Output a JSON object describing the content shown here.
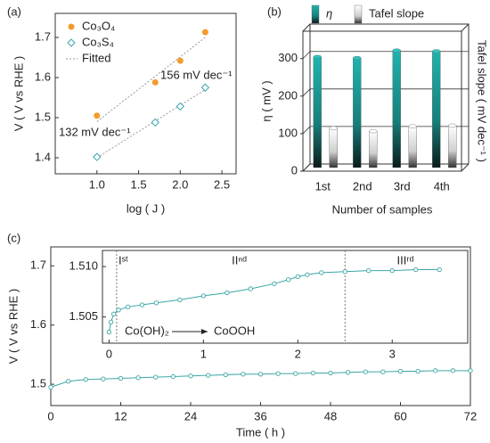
{
  "chart_data": [
    {
      "type": "scatter",
      "panel_label": "(a)",
      "xlabel": "log ( J )",
      "ylabel": "V ( V vs RHE )",
      "xlim": [
        0.5,
        2.67
      ],
      "ylim": [
        1.36,
        1.76
      ],
      "xticks": [
        {
          "value": 1,
          "label": "1.0"
        },
        1.5,
        {
          "value": 2,
          "label": "2.0"
        },
        2.5
      ],
      "yticks": [
        1.4,
        1.5,
        1.6,
        1.7
      ],
      "series": [
        {
          "name": "Co₃O₄",
          "color": "#f39c2c",
          "marker": "circle",
          "x": [
            1.0,
            1.7,
            2.0,
            2.3
          ],
          "values": [
            1.505,
            1.588,
            1.642,
            1.713
          ]
        },
        {
          "name": "Co₃S₄",
          "color": "#3ba7b5",
          "marker": "diamond",
          "x": [
            1.0,
            1.7,
            2.0,
            2.3
          ],
          "values": [
            1.402,
            1.488,
            1.528,
            1.575
          ]
        }
      ],
      "fitted": {
        "name": "Fitted",
        "color": "#999999",
        "lines": [
          {
            "x": [
              1.0,
              2.3
            ],
            "values": [
              1.49,
              1.7
            ]
          },
          {
            "x": [
              1.0,
              2.3
            ],
            "values": [
              1.4,
              1.57
            ]
          }
        ]
      },
      "annotations": [
        "132 mV dec⁻¹",
        "156 mV dec⁻¹"
      ]
    },
    {
      "type": "bar3d",
      "panel_label": "(b)",
      "xlabel": "Number of samples",
      "ylabel": "η ( mV )",
      "y2label": "Tafel slope ( mV dec⁻¹ )",
      "categories": [
        "1st",
        "2nd",
        "3rd",
        "4th"
      ],
      "ylim": [
        0,
        373
      ],
      "yticks": [
        0,
        100,
        200,
        300
      ],
      "grid": true,
      "series": [
        {
          "name": "η",
          "color": "#1a9a96",
          "values": [
            295,
            292,
            312,
            310
          ]
        },
        {
          "name": "Tafel slope",
          "color": "#d8d8d8",
          "values": [
            105,
            97,
            110,
            112
          ]
        }
      ]
    },
    {
      "type": "line",
      "panel_label": "(c)",
      "xlabel": "Time ( h )",
      "ylabel": "V ( V vs RHE )",
      "xlim": [
        0,
        72
      ],
      "ylim": [
        1.464,
        1.732
      ],
      "xticks": [
        0,
        12,
        24,
        36,
        48,
        60,
        72
      ],
      "yticks": [
        1.5,
        1.6,
        1.7
      ],
      "series": [
        {
          "color": "#3ba7a5",
          "x": [
            0,
            3,
            6,
            9,
            12,
            15,
            18,
            21,
            24,
            27,
            30,
            33,
            36,
            39,
            42,
            45,
            48,
            51,
            54,
            57,
            60,
            63,
            66,
            69,
            72
          ],
          "values": [
            1.495,
            1.505,
            1.508,
            1.509,
            1.51,
            1.511,
            1.512,
            1.513,
            1.514,
            1.515,
            1.516,
            1.517,
            1.517,
            1.518,
            1.518,
            1.519,
            1.519,
            1.52,
            1.521,
            1.521,
            1.522,
            1.522,
            1.523,
            1.523,
            1.523
          ]
        }
      ]
    },
    {
      "type": "line",
      "inset": true,
      "xlim": [
        -0.07,
        3.8
      ],
      "ylim": [
        1.5024,
        1.5116
      ],
      "xticks": [
        0,
        1,
        2,
        3
      ],
      "yticks": [
        1.505,
        {
          "value": 1.51,
          "label": "1.510"
        }
      ],
      "vlines": [
        0.08,
        2.5
      ],
      "stage_labels": [
        "Iˢᵗ",
        "IIⁿᵈ",
        "IIIʳᵈ"
      ],
      "reaction": [
        "Co(OH)₂",
        "CoOOH"
      ],
      "series": [
        {
          "color": "#3ba7a5",
          "x": [
            0,
            0.02,
            0.05,
            0.1,
            0.2,
            0.35,
            0.5,
            0.75,
            1,
            1.25,
            1.5,
            1.75,
            1.9,
            2.0,
            2.1,
            2.25,
            2.5,
            2.75,
            3,
            3.25,
            3.5
          ],
          "values": [
            1.5035,
            1.5045,
            1.5053,
            1.5057,
            1.506,
            1.5062,
            1.5064,
            1.5067,
            1.5071,
            1.5074,
            1.5078,
            1.5083,
            1.5087,
            1.509,
            1.5092,
            1.5094,
            1.5095,
            1.5096,
            1.5096,
            1.5097,
            1.5097
          ]
        }
      ]
    }
  ]
}
